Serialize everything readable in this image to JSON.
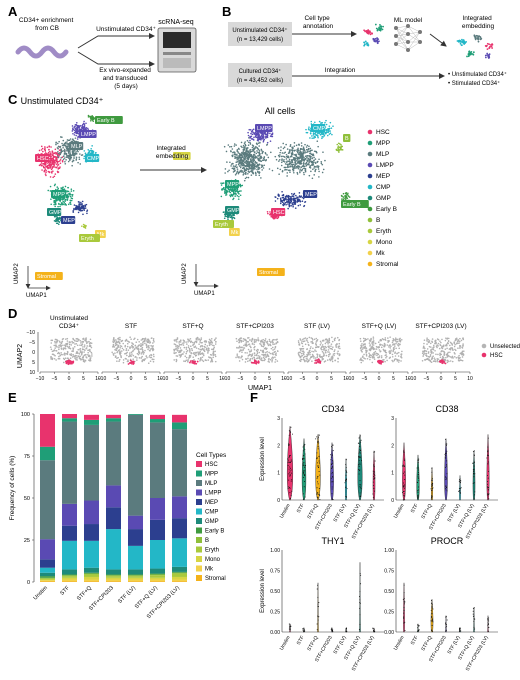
{
  "colors": {
    "HSC": "#e8336d",
    "MPP": "#1f9e77",
    "MLP": "#5b7b7e",
    "LMPP": "#5a4ab3",
    "MEP": "#2c3f8f",
    "CMP": "#23b7c7",
    "GMP": "#1d8a7a",
    "Early B": "#3f9a3f",
    "B": "#8fbf3a",
    "Eryth": "#a9c93c",
    "Mono": "#d6d544",
    "Mk": "#f2d14b",
    "Stromal": "#f4b21a",
    "Unselected": "#b5b5b5",
    "gray": "#b0b0b0"
  },
  "panelA": {
    "letter": "A",
    "source": "CD34+ enrichment\nfrom CB",
    "arrow_top": "Unstimulated CD34⁺",
    "arrow_bottom": "Ex vivo-expanded\nand transduced\n(5 days)",
    "machine": "scRNA-seq"
  },
  "panelB": {
    "letter": "B",
    "box1": "Unstimulated CD34⁺",
    "box1_n": "(n = 13,429 cells)",
    "box2": "Cultured CD34⁺",
    "box2_n": "(n = 43,452 cells)",
    "step1": "Cell type\nannotation",
    "step2": "ML model",
    "step3": "Integration",
    "result": "Integrated\nembedding",
    "bullets": [
      "• Unstimulated CD34⁺",
      "• Stimulated CD34⁺"
    ]
  },
  "panelC": {
    "letter": "C",
    "title_left": "Unstimulated CD34⁺",
    "title_right": "All cells",
    "arrow": "Integrated\nembedding",
    "umap1": "UMAP1",
    "umap2": "UMAP2",
    "legend": [
      "HSC",
      "MPP",
      "MLP",
      "LMPP",
      "MEP",
      "CMP",
      "GMP",
      "Early B",
      "B",
      "Eryth",
      "Mono",
      "Mk",
      "Stromal"
    ],
    "left_labels": [
      {
        "t": "Early B",
        "c": "Early B"
      },
      {
        "t": "LMPP",
        "c": "LMPP"
      },
      {
        "t": "CMP",
        "c": "CMP"
      },
      {
        "t": "MLP",
        "c": "MLP"
      },
      {
        "t": "HSC",
        "c": "HSC"
      },
      {
        "t": "MPP",
        "c": "MPP"
      },
      {
        "t": "GMP",
        "c": "GMP"
      },
      {
        "t": "MEP",
        "c": "MEP"
      },
      {
        "t": "Mk",
        "c": "Mk"
      },
      {
        "t": "Eryth",
        "c": "Eryth"
      },
      {
        "t": "Stromal",
        "c": "Stromal"
      }
    ],
    "right_labels": [
      {
        "t": "CMP",
        "c": "CMP"
      },
      {
        "t": "B",
        "c": "B"
      },
      {
        "t": "LMPP",
        "c": "LMPP"
      },
      {
        "t": "MEP",
        "c": "MEP"
      },
      {
        "t": "MPP",
        "c": "MPP"
      },
      {
        "t": "GMP",
        "c": "GMP"
      },
      {
        "t": "HSC",
        "c": "HSC"
      },
      {
        "t": "Early B",
        "c": "Early B"
      },
      {
        "t": "Mono",
        "c": "Mono"
      },
      {
        "t": "Mk",
        "c": "Mk"
      },
      {
        "t": "Eryth",
        "c": "Eryth"
      },
      {
        "t": "Stromal",
        "c": "Stromal"
      }
    ]
  },
  "panelD": {
    "letter": "D",
    "titles": [
      "Unstimulated\nCD34⁺",
      "STF",
      "STF+Q",
      "STF+CPI203",
      "STF (LV)",
      "STF+Q (LV)",
      "STF+CPI203 (LV)"
    ],
    "xticks": [
      "−10",
      "−5",
      "0",
      "5",
      "10"
    ],
    "yticks": [
      "−10",
      "−5",
      "0",
      "5",
      "10"
    ],
    "xlabel": "UMAP1",
    "ylabel": "UMAP2",
    "legend": [
      {
        "t": "Unselected",
        "c": "Unselected"
      },
      {
        "t": "HSC",
        "c": "HSC"
      }
    ]
  },
  "panelE": {
    "letter": "E",
    "chart_data": {
      "type": "bar",
      "categories": [
        "Unstim",
        "STF",
        "STF+Q",
        "STF+CPI203",
        "STF (LV)",
        "STF+Q (LV)",
        "STF+CPI203 (LV)"
      ],
      "ylabel": "Frequency of cells (%)",
      "ylim": [
        0,
        100
      ],
      "yticks": [
        "0",
        "25",
        "50",
        "75",
        "100"
      ],
      "legend_title": "Cell Types",
      "series": [
        {
          "name": "Stromal",
          "values": [
            0.5,
            0.5,
            0.5,
            0.5,
            0.5,
            0.5,
            0.5
          ]
        },
        {
          "name": "Mk",
          "values": [
            0.5,
            1,
            1,
            1,
            1,
            1,
            1
          ]
        },
        {
          "name": "Mono",
          "values": [
            0.5,
            1,
            1.5,
            1,
            1,
            1,
            1.5
          ]
        },
        {
          "name": "Eryth",
          "values": [
            0.5,
            1,
            1.5,
            1,
            1,
            1.5,
            2
          ]
        },
        {
          "name": "B",
          "values": [
            0.5,
            0.5,
            0.5,
            0.5,
            0.5,
            0.5,
            0.5
          ]
        },
        {
          "name": "Early B",
          "values": [
            1,
            0.5,
            0.5,
            0.5,
            0.5,
            0.5,
            0.5
          ]
        },
        {
          "name": "GMP",
          "values": [
            2,
            3,
            3,
            3,
            3,
            3,
            3
          ]
        },
        {
          "name": "CMP",
          "values": [
            3,
            17,
            16,
            24,
            14,
            17,
            17
          ]
        },
        {
          "name": "MEP",
          "values": [
            5,
            9,
            10,
            13,
            10,
            12,
            12
          ]
        },
        {
          "name": "LMPP",
          "values": [
            12,
            13,
            14,
            13,
            8,
            13,
            13
          ]
        },
        {
          "name": "MLP",
          "values": [
            47,
            49,
            45,
            38,
            60,
            45,
            40
          ]
        },
        {
          "name": "MPP",
          "values": [
            8,
            2,
            3,
            2,
            0.5,
            2,
            4
          ]
        },
        {
          "name": "HSC",
          "values": [
            19.5,
            2.5,
            3,
            2,
            0,
            2.5,
            4.5
          ]
        }
      ]
    }
  },
  "panelF": {
    "letter": "F",
    "ylabel": "Expression level",
    "categories": [
      "Unstim",
      "STF",
      "STF+Q",
      "STF+CPI203",
      "STF (LV)",
      "STF+Q (LV)",
      "STF+CPI203 (LV)"
    ],
    "violin_colors": [
      "HSC",
      "MPP",
      "Stromal",
      "LMPP",
      "CMP",
      "GMP",
      "HSC"
    ],
    "plots": [
      {
        "title": "CD34",
        "yticks": [
          "0",
          "1",
          "2",
          "3"
        ],
        "widths": [
          0.9,
          0.6,
          0.75,
          0.5,
          0.2,
          0.7,
          0.3
        ],
        "tops": [
          0.9,
          0.75,
          0.8,
          0.7,
          0.5,
          0.8,
          0.6
        ]
      },
      {
        "title": "CD38",
        "yticks": [
          "0",
          "1",
          "2",
          "3"
        ],
        "widths": [
          0.5,
          0.4,
          0.2,
          0.45,
          0.15,
          0.3,
          0.35
        ],
        "tops": [
          0.7,
          0.55,
          0.4,
          0.75,
          0.3,
          0.6,
          0.8
        ]
      },
      {
        "title": "THY1",
        "yticks": [
          "0.00",
          "0.25",
          "0.50",
          "0.75",
          "1.00"
        ],
        "widths": [
          0.05,
          0.02,
          0.05,
          0.02,
          0.02,
          0.05,
          0.02
        ],
        "tops": [
          0.1,
          0.05,
          0.6,
          0.05,
          0.05,
          0.85,
          0.05
        ]
      },
      {
        "title": "PROCR",
        "yticks": [
          "0.00",
          "0.25",
          "0.50",
          "0.75",
          "1.00"
        ],
        "widths": [
          0.15,
          0.03,
          0.3,
          0.05,
          0.02,
          0.05,
          0.03
        ],
        "tops": [
          0.6,
          0.1,
          0.4,
          0.2,
          0.05,
          0.3,
          0.2
        ]
      }
    ]
  }
}
